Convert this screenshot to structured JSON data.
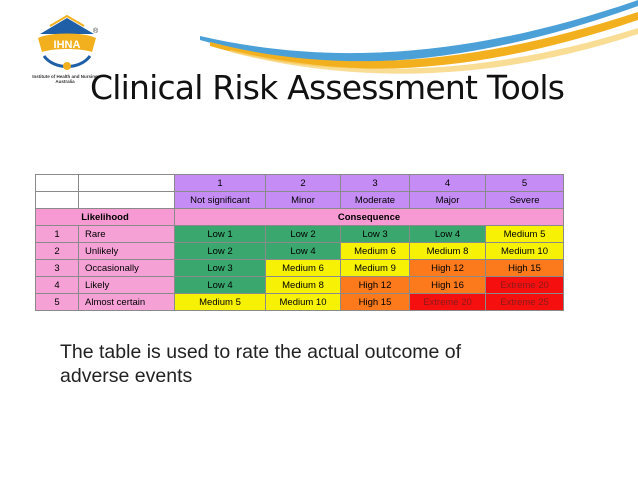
{
  "logo": {
    "text": "IHNA",
    "registered": "®",
    "subtitle_line1": "Institute of Health and Nursing",
    "subtitle_line2": "Australia"
  },
  "slide": {
    "title": "Clinical Risk Assessment Tools",
    "caption": "The table is used to rate the actual outcome of adverse events"
  },
  "table": {
    "consequence_numbers": [
      "1",
      "2",
      "3",
      "4",
      "5"
    ],
    "consequence_names": [
      "Not significant",
      "Minor",
      "Moderate",
      "Major",
      "Severe"
    ],
    "likelihood_header": "Likelihood",
    "consequence_header": "Consequence",
    "rows": [
      {
        "num": "1",
        "label": "Rare",
        "cells": [
          "Low 1",
          "Low 2",
          "Low 3",
          "Low 4",
          "Medium 5"
        ],
        "levels": [
          "low",
          "low",
          "low",
          "low",
          "med"
        ]
      },
      {
        "num": "2",
        "label": "Unlikely",
        "cells": [
          "Low 2",
          "Low 4",
          "Medium 6",
          "Medium 8",
          "Medium 10"
        ],
        "levels": [
          "low",
          "low",
          "med",
          "med",
          "med"
        ]
      },
      {
        "num": "3",
        "label": "Occasionally",
        "cells": [
          "Low 3",
          "Medium 6",
          "Medium 9",
          "High 12",
          "High 15"
        ],
        "levels": [
          "low",
          "med",
          "med",
          "high",
          "high"
        ]
      },
      {
        "num": "4",
        "label": "Likely",
        "cells": [
          "Low 4",
          "Medium 8",
          "High 12",
          "High 16",
          "Extreme 20"
        ],
        "levels": [
          "low",
          "med",
          "high",
          "high",
          "ext"
        ]
      },
      {
        "num": "5",
        "label": "Almost certain",
        "cells": [
          "Medium 5",
          "Medium 10",
          "High 15",
          "Extreme 20",
          "Extreme 25"
        ],
        "levels": [
          "med",
          "med",
          "high",
          "ext",
          "ext"
        ]
      }
    ]
  },
  "colors": {
    "low": "#3aa86e",
    "medium": "#f7f106",
    "high": "#fc7a1c",
    "extreme": "#f50f0f",
    "header_purple": "#c58cf5",
    "header_pink": "#f79ad3",
    "swoosh_blue": "#2a8fd0",
    "swoosh_gold": "#f2b01e"
  }
}
